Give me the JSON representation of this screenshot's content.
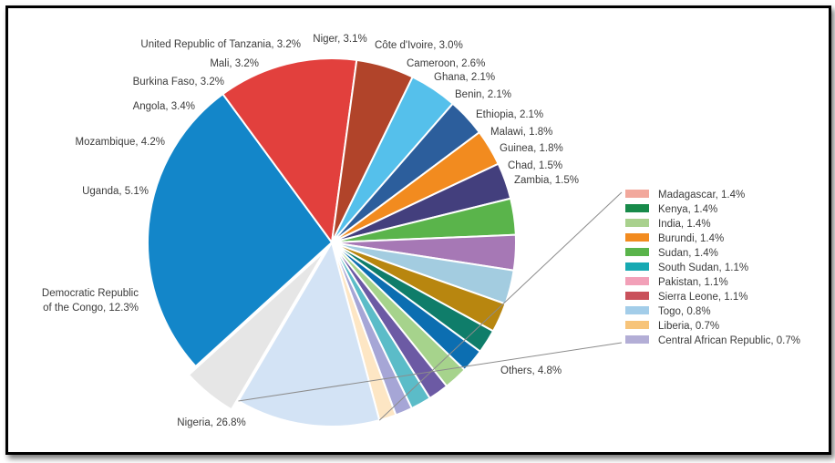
{
  "chart_data": {
    "type": "pie",
    "slices": [
      {
        "label": "Nigeria",
        "value": 26.8,
        "color": "#1386c9",
        "text": "Nigeria, 26.8%"
      },
      {
        "label": "Democratic Republic of the Congo",
        "value": 12.3,
        "color": "#e2403d",
        "text": [
          "Democratic Republic",
          "of the Congo, 12.3%"
        ]
      },
      {
        "label": "Uganda",
        "value": 5.1,
        "color": "#b1442a",
        "text": "Uganda, 5.1%"
      },
      {
        "label": "Mozambique",
        "value": 4.2,
        "color": "#55c0eb",
        "text": "Mozambique, 4.2%"
      },
      {
        "label": "Angola",
        "value": 3.4,
        "color": "#2c5e9c",
        "text": "Angola, 3.4%"
      },
      {
        "label": "Burkina Faso",
        "value": 3.2,
        "color": "#f28b1f",
        "text": "Burkina Faso, 3.2%"
      },
      {
        "label": "Mali",
        "value": 3.2,
        "color": "#433f7d",
        "text": "Mali, 3.2%"
      },
      {
        "label": "United Republic of Tanzania",
        "value": 3.2,
        "color": "#5ab44b",
        "text": "United Republic of Tanzania, 3.2%"
      },
      {
        "label": "Niger",
        "value": 3.1,
        "color": "#a678b5",
        "text": "Niger, 3.1%"
      },
      {
        "label": "Côte d'Ivoire",
        "value": 3.0,
        "color": "#a3cce0",
        "text": "Côte d'Ivoire, 3.0%"
      },
      {
        "label": "Cameroon",
        "value": 2.6,
        "color": "#b8860f",
        "text": "Cameroon, 2.6%"
      },
      {
        "label": "Ghana",
        "value": 2.1,
        "color": "#0f7d6a",
        "text": "Ghana, 2.1%"
      },
      {
        "label": "Benin",
        "value": 2.1,
        "color": "#0c6eb1",
        "text": "Benin, 2.1%"
      },
      {
        "label": "Ethiopia",
        "value": 2.1,
        "color": "#a6d38c",
        "text": "Ethiopia, 2.1%"
      },
      {
        "label": "Malawi",
        "value": 1.8,
        "color": "#6c5aa4",
        "text": "Malawi, 1.8%"
      },
      {
        "label": "Guinea",
        "value": 1.8,
        "color": "#5bbcc8",
        "text": "Guinea, 1.8%"
      },
      {
        "label": "Chad",
        "value": 1.5,
        "color": "#a6a6d6",
        "text": "Chad, 1.5%"
      },
      {
        "label": "Zambia",
        "value": 1.5,
        "color": "#fde6c4",
        "text": "Zambia, 1.5%"
      },
      {
        "label": "Others (group)",
        "value": 12.7,
        "color": "#d3e3f5",
        "text": ""
      },
      {
        "label": "Others",
        "value": 4.8,
        "color": "#e6e6e6",
        "text": "Others, 4.8%",
        "exploded": true
      }
    ],
    "breakout_legend": [
      {
        "label": "Madagascar, 1.4%",
        "color": "#f2a89c"
      },
      {
        "label": "Kenya, 1.4%",
        "color": "#178a4a"
      },
      {
        "label": "India, 1.4%",
        "color": "#a9d18e"
      },
      {
        "label": "Burundi, 1.4%",
        "color": "#f28b1f"
      },
      {
        "label": "Sudan, 1.4%",
        "color": "#5ab44b"
      },
      {
        "label": "South Sudan, 1.1%",
        "color": "#17a9b2"
      },
      {
        "label": "Pakistan, 1.1%",
        "color": "#f2a0b8"
      },
      {
        "label": "Sierra Leone, 1.1%",
        "color": "#c9515b"
      },
      {
        "label": "Togo, 0.8%",
        "color": "#a3cde9"
      },
      {
        "label": "Liberia, 0.7%",
        "color": "#f7c47a"
      },
      {
        "label": "Central African Republic, 0.7%",
        "color": "#b3aed6"
      }
    ]
  }
}
